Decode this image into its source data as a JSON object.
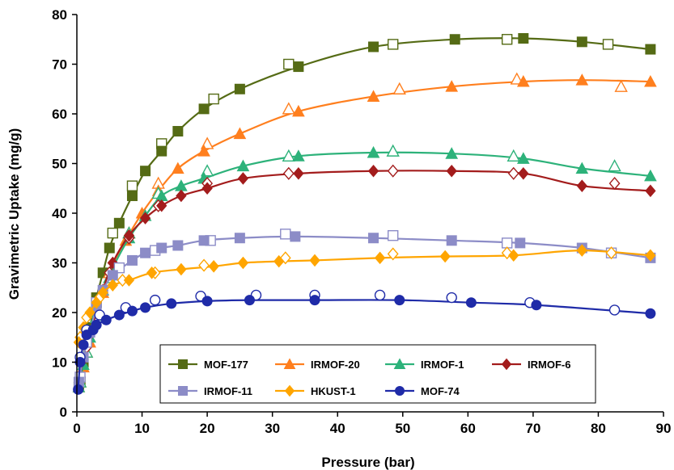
{
  "chart_data": {
    "type": "scatter",
    "xlabel": "Pressure (bar)",
    "ylabel": "Gravimetric Uptake (mg/g)",
    "xlim": [
      0,
      90
    ],
    "ylim": [
      0,
      80
    ],
    "xticks": [
      0,
      10,
      20,
      30,
      40,
      50,
      60,
      70,
      80,
      90
    ],
    "yticks": [
      0,
      10,
      20,
      30,
      40,
      50,
      60,
      70,
      80
    ],
    "grid": false,
    "legend_position": "bottom-center",
    "series": [
      {
        "name": "MOF-177",
        "color": "#556b15",
        "marker": "square",
        "x": [
          0.3,
          1.0,
          2.0,
          3.0,
          4.0,
          5.0,
          6.5,
          8.5,
          10.5,
          13.0,
          15.5,
          19.5,
          25.0,
          34.0,
          45.5,
          58.0,
          68.5,
          77.5,
          88.0
        ],
        "y": [
          5,
          10,
          17,
          23,
          28,
          33,
          38,
          43.5,
          48.5,
          52.5,
          56.5,
          61,
          65,
          69.5,
          73.5,
          75,
          75.2,
          74.5,
          73
        ],
        "desorb_x": [
          0.5,
          1.5,
          3.0,
          5.5,
          8.5,
          13.0,
          21.0,
          32.5,
          48.5,
          66.0,
          81.5
        ],
        "desorb_y": [
          6,
          14,
          22,
          36,
          45.5,
          54,
          63,
          70,
          74,
          75,
          74
        ]
      },
      {
        "name": "IRMOF-20",
        "color": "#ff7f1e",
        "marker": "triangle",
        "x": [
          0.3,
          1.0,
          2.0,
          3.0,
          4.0,
          5.5,
          7.5,
          10.0,
          12.5,
          15.5,
          19.5,
          25.0,
          34.0,
          45.5,
          57.5,
          68.5,
          77.5,
          88.0
        ],
        "y": [
          5,
          9,
          14,
          19,
          24,
          29,
          34.5,
          40,
          44.5,
          49,
          52.5,
          56,
          60.5,
          63.5,
          65.5,
          66.5,
          66.8,
          66.5
        ],
        "desorb_x": [
          0.5,
          1.5,
          3.0,
          5.0,
          8.0,
          12.5,
          20.0,
          32.5,
          49.5,
          67.5,
          83.5
        ],
        "desorb_y": [
          6,
          12,
          19,
          28,
          36,
          46,
          54,
          61,
          65,
          67,
          65.5
        ]
      },
      {
        "name": "IRMOF-1",
        "color": "#2db27a",
        "marker": "triangle",
        "x": [
          0.3,
          1.0,
          2.0,
          3.0,
          4.0,
          5.5,
          8.0,
          10.5,
          13.0,
          16.0,
          19.5,
          25.5,
          34.0,
          45.5,
          57.5,
          68.5,
          77.5,
          88.0
        ],
        "y": [
          5,
          9.5,
          15,
          20,
          24.5,
          29,
          35,
          39.5,
          43.5,
          45.5,
          47,
          49.5,
          51.5,
          52.2,
          52,
          51,
          49,
          47.5
        ],
        "desorb_x": [
          0.5,
          1.5,
          3.0,
          5.0,
          8.0,
          12.5,
          20.0,
          32.5,
          48.5,
          67.0,
          82.5
        ],
        "desorb_y": [
          6,
          12,
          19,
          27,
          36,
          44,
          48.5,
          51.5,
          52.5,
          51.5,
          49.5
        ]
      },
      {
        "name": "IRMOF-6",
        "color": "#a31c1c",
        "marker": "diamond",
        "x": [
          0.3,
          1.0,
          2.0,
          3.0,
          4.0,
          5.5,
          8.0,
          10.5,
          13.0,
          16.0,
          20.0,
          25.5,
          34.0,
          45.5,
          57.5,
          68.5,
          77.5,
          88.0
        ],
        "y": [
          6,
          10.5,
          15.5,
          20,
          24.5,
          30,
          35.5,
          39,
          41.5,
          43.5,
          45,
          47,
          48,
          48.5,
          48.5,
          48,
          45.5,
          44.5
        ],
        "desorb_x": [
          0.5,
          1.5,
          3.0,
          5.0,
          8.0,
          12.5,
          20.0,
          32.5,
          48.5,
          67.0,
          82.5
        ],
        "desorb_y": [
          7,
          13,
          20,
          28,
          35,
          41.5,
          46,
          48,
          48.5,
          48,
          46
        ]
      },
      {
        "name": "IRMOF-11",
        "color": "#8c8cc7",
        "marker": "square",
        "x": [
          0.3,
          1.0,
          2.0,
          3.0,
          4.0,
          5.5,
          8.5,
          10.5,
          13.0,
          15.5,
          19.5,
          25.0,
          33.5,
          45.5,
          57.5,
          68.0,
          77.5,
          88.0
        ],
        "y": [
          6,
          11,
          16,
          21,
          24.5,
          27.5,
          30.5,
          32,
          33,
          33.5,
          34.5,
          35,
          35.3,
          35,
          34.5,
          34,
          33,
          31
        ],
        "desorb_x": [
          0.5,
          1.5,
          3.0,
          6.5,
          12.0,
          20.5,
          32.0,
          48.5,
          66.0,
          82.0
        ],
        "desorb_y": [
          7,
          14,
          22,
          29,
          32.5,
          34.5,
          35.8,
          35.5,
          34,
          32
        ]
      },
      {
        "name": "HKUST-1",
        "color": "#ffa500",
        "marker": "diamond",
        "x": [
          0.3,
          1.0,
          2.0,
          3.0,
          4.0,
          5.5,
          8.0,
          11.5,
          16.0,
          21.0,
          25.5,
          31.0,
          36.5,
          46.5,
          56.5,
          67.0,
          77.5,
          88.0
        ],
        "y": [
          14,
          17,
          20,
          22,
          24,
          25.5,
          26.5,
          28,
          28.7,
          29.3,
          30,
          30.3,
          30.5,
          31,
          31.3,
          31.5,
          32.5,
          31.5
        ],
        "desorb_x": [
          0.5,
          1.5,
          3.5,
          7.0,
          12.0,
          19.5,
          32.0,
          48.5,
          66.0,
          82.0
        ],
        "desorb_y": [
          15,
          19,
          23,
          26.5,
          28,
          29.5,
          31,
          31.8,
          32,
          32
        ]
      },
      {
        "name": "MOF-74",
        "color": "#1f2ba8",
        "marker": "circle",
        "x": [
          0.2,
          0.5,
          1.0,
          1.5,
          2.5,
          3.0,
          4.5,
          6.5,
          8.5,
          10.5,
          14.5,
          20.0,
          26.5,
          36.5,
          49.5,
          60.5,
          70.5,
          88.0
        ],
        "y": [
          4.5,
          10,
          13.5,
          15.5,
          16.5,
          17.5,
          18.5,
          19.5,
          20.3,
          21,
          21.8,
          22.3,
          22.5,
          22.5,
          22.5,
          22,
          21.5,
          19.8
        ],
        "desorb_x": [
          0.5,
          1.5,
          3.5,
          7.5,
          12.0,
          19.0,
          27.5,
          36.5,
          46.5,
          57.5,
          69.5,
          82.5
        ],
        "desorb_y": [
          11,
          16.5,
          19.5,
          21,
          22.5,
          23.3,
          23.5,
          23.5,
          23.5,
          23,
          22,
          20.5
        ]
      }
    ]
  }
}
